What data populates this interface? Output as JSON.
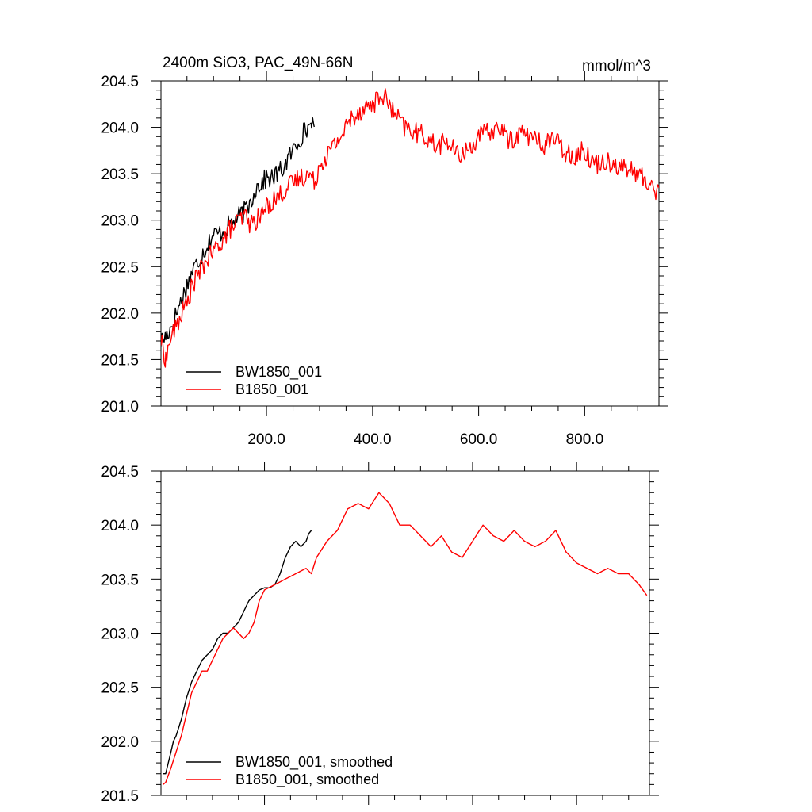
{
  "chart_data": [
    {
      "type": "line",
      "panel": "top",
      "title": "2400m SiO3, PAC_49N-66N",
      "units": "mmol/m^3",
      "xlabel": "",
      "ylabel": "",
      "xlim": [
        1,
        940
      ],
      "ylim": [
        201.0,
        204.5
      ],
      "xticks": [
        200,
        400,
        600,
        800
      ],
      "xtick_labels": [
        "200.0",
        "400.0",
        "600.0",
        "800.0"
      ],
      "yticks": [
        201.0,
        201.5,
        202.0,
        202.5,
        203.0,
        203.5,
        204.0,
        204.5
      ],
      "ytick_labels": [
        "201.0",
        "201.5",
        "202.0",
        "202.5",
        "203.0",
        "203.5",
        "204.0",
        "204.5"
      ],
      "grid": false,
      "legend_position": "bottom-left",
      "series": [
        {
          "name": "BW1850_001",
          "color": "#000000",
          "x": [
            1,
            10,
            20,
            30,
            40,
            50,
            60,
            70,
            80,
            90,
            100,
            110,
            120,
            130,
            140,
            150,
            160,
            170,
            180,
            190,
            200,
            210,
            220,
            230,
            240,
            250,
            260,
            270,
            280,
            285,
            290
          ],
          "y": [
            201.7,
            201.75,
            201.85,
            202.0,
            202.15,
            202.3,
            202.45,
            202.55,
            202.65,
            202.75,
            202.85,
            202.85,
            202.9,
            202.95,
            203.0,
            203.05,
            203.1,
            203.2,
            203.35,
            203.4,
            203.45,
            203.45,
            203.5,
            203.55,
            203.65,
            203.75,
            203.85,
            203.95,
            204.0,
            204.1,
            203.9
          ]
        },
        {
          "name": "B1850_001",
          "color": "#ff0000",
          "x": [
            1,
            10,
            20,
            30,
            40,
            50,
            60,
            70,
            80,
            90,
            100,
            110,
            120,
            130,
            140,
            150,
            160,
            170,
            180,
            190,
            200,
            220,
            240,
            260,
            280,
            290,
            300,
            320,
            340,
            360,
            380,
            400,
            420,
            440,
            460,
            480,
            500,
            520,
            540,
            560,
            580,
            600,
            620,
            640,
            660,
            680,
            700,
            720,
            740,
            760,
            780,
            800,
            820,
            840,
            860,
            880,
            900,
            920,
            940
          ],
          "y": [
            201.7,
            201.5,
            201.75,
            201.85,
            202.0,
            202.1,
            202.3,
            202.4,
            202.5,
            202.6,
            202.65,
            202.75,
            202.8,
            202.9,
            202.95,
            203.0,
            203.05,
            202.95,
            203.0,
            203.05,
            203.15,
            203.25,
            203.35,
            203.45,
            203.5,
            203.4,
            203.6,
            203.75,
            203.9,
            204.1,
            204.2,
            204.25,
            204.35,
            204.15,
            204.0,
            203.95,
            203.9,
            203.8,
            203.85,
            203.7,
            203.75,
            203.9,
            203.95,
            204.0,
            203.85,
            203.95,
            203.9,
            203.8,
            203.9,
            203.75,
            203.7,
            203.75,
            203.6,
            203.65,
            203.6,
            203.55,
            203.5,
            203.4,
            203.3
          ]
        }
      ]
    },
    {
      "type": "line",
      "panel": "bottom",
      "title": "",
      "xlabel": "",
      "ylabel": "",
      "xlim": [
        1,
        940
      ],
      "ylim": [
        201.5,
        204.5
      ],
      "yticks": [
        201.5,
        202.0,
        202.5,
        203.0,
        203.5,
        204.0,
        204.5
      ],
      "ytick_labels": [
        "201.5",
        "202.0",
        "202.5",
        "203.0",
        "203.5",
        "204.0",
        "204.5"
      ],
      "grid": false,
      "legend_position": "bottom-left",
      "series": [
        {
          "name": "BW1850_001, smoothed",
          "color": "#000000",
          "x": [
            5,
            10,
            15,
            20,
            25,
            30,
            40,
            50,
            60,
            70,
            80,
            90,
            100,
            110,
            120,
            130,
            140,
            150,
            160,
            170,
            180,
            190,
            200,
            210,
            220,
            230,
            240,
            250,
            260,
            270,
            280,
            285,
            290
          ],
          "y": [
            201.7,
            201.7,
            201.8,
            201.9,
            202.0,
            202.05,
            202.2,
            202.4,
            202.55,
            202.65,
            202.75,
            202.8,
            202.85,
            202.95,
            203.0,
            203.0,
            203.05,
            203.1,
            203.2,
            203.3,
            203.35,
            203.4,
            203.42,
            203.42,
            203.45,
            203.55,
            203.7,
            203.8,
            203.85,
            203.8,
            203.85,
            203.92,
            203.95
          ]
        },
        {
          "name": "B1850_001, smoothed",
          "color": "#ff0000",
          "x": [
            5,
            10,
            20,
            30,
            40,
            50,
            60,
            70,
            80,
            90,
            100,
            110,
            120,
            130,
            140,
            150,
            160,
            170,
            180,
            190,
            200,
            220,
            240,
            260,
            280,
            290,
            300,
            320,
            340,
            360,
            380,
            400,
            420,
            440,
            460,
            480,
            500,
            520,
            540,
            560,
            580,
            600,
            620,
            640,
            660,
            680,
            700,
            720,
            740,
            760,
            780,
            800,
            820,
            840,
            860,
            880,
            900,
            920,
            935
          ],
          "y": [
            201.6,
            201.62,
            201.75,
            201.9,
            202.05,
            202.25,
            202.45,
            202.55,
            202.65,
            202.65,
            202.75,
            202.85,
            202.95,
            203.0,
            203.05,
            203.0,
            202.95,
            203.0,
            203.1,
            203.3,
            203.4,
            203.45,
            203.5,
            203.55,
            203.6,
            203.55,
            203.7,
            203.85,
            203.95,
            204.15,
            204.2,
            204.15,
            204.3,
            204.2,
            204.0,
            204.0,
            203.9,
            203.8,
            203.9,
            203.75,
            203.7,
            203.85,
            204.0,
            203.9,
            203.85,
            203.95,
            203.85,
            203.8,
            203.85,
            203.95,
            203.75,
            203.65,
            203.6,
            203.55,
            203.6,
            203.55,
            203.55,
            203.45,
            203.35
          ]
        }
      ]
    }
  ]
}
